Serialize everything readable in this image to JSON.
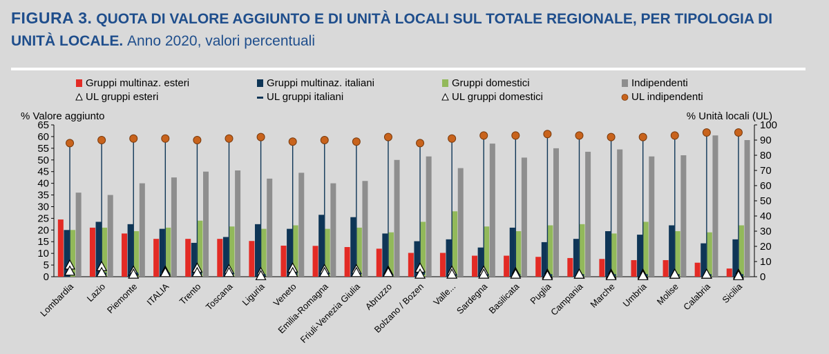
{
  "header": {
    "figure_label": "FIGURA 3.",
    "title_main": "QUOTA DI VALORE AGGIUNTO E DI UNITÀ LOCALI SUL TOTALE REGIONALE, PER TIPOLOGIA DI UNITÀ LOCALE.",
    "title_sub": "Anno 2020, valori percentuali"
  },
  "chart_data": {
    "type": "bar",
    "title": "QUOTA DI VALORE AGGIUNTO E DI UNITÀ LOCALI SUL TOTALE REGIONALE, PER TIPOLOGIA DI UNITÀ LOCALE.",
    "ylabel": "% Valore aggiunto",
    "y2label": "% Unità locali (UL)",
    "ylim": [
      0,
      65
    ],
    "y2lim": [
      0,
      100
    ],
    "yticks": [
      0,
      5,
      10,
      15,
      20,
      25,
      30,
      35,
      40,
      45,
      50,
      55,
      60,
      65
    ],
    "y2ticks": [
      0,
      10,
      20,
      30,
      40,
      50,
      60,
      70,
      80,
      90,
      100
    ],
    "legend_position": "top",
    "categories": [
      "Lombardia",
      "Lazio",
      "Piemonte",
      "ITALIA",
      "Trento",
      "Toscana",
      "Liguria",
      "Veneto",
      "Emilia-Romagna",
      "Friuli-Venezia Giulia",
      "Abruzzo",
      "Bolzano / Bozen",
      "Valle...",
      "Sardegna",
      "Basilicata",
      "Puglia",
      "Campania",
      "Marche",
      "Umbria",
      "Molise",
      "Calabria",
      "Sicilia"
    ],
    "series": [
      {
        "name": "Gruppi multinaz. esteri",
        "kind": "bar",
        "axis": "left",
        "color": "#e32b25",
        "values": [
          24.5,
          21,
          18.5,
          16.2,
          16.2,
          16.2,
          15.3,
          13.3,
          13.2,
          12.7,
          12,
          10.2,
          10.2,
          9,
          9,
          8.5,
          8,
          7.6,
          7.1,
          7.1,
          6,
          3.5
        ]
      },
      {
        "name": "Gruppi multinaz. italiani",
        "kind": "bar",
        "axis": "left",
        "color": "#0e3556",
        "values": [
          20,
          23.5,
          22.5,
          20.5,
          14.5,
          17,
          22.5,
          20.5,
          26.5,
          25.5,
          18.5,
          15.2,
          16,
          12.5,
          21,
          14.8,
          16.2,
          19.5,
          18,
          22,
          14.3,
          16
        ]
      },
      {
        "name": "Gruppi domestici",
        "kind": "bar",
        "axis": "left",
        "color": "#92b95a",
        "values": [
          20,
          21,
          19.5,
          21,
          24,
          21.5,
          20.5,
          22,
          20.5,
          21,
          19,
          23.5,
          28,
          21.5,
          19.5,
          22,
          22.5,
          18.5,
          23.5,
          19.5,
          19,
          22
        ]
      },
      {
        "name": "Indipendenti",
        "kind": "bar",
        "axis": "left",
        "color": "#8e8e8e",
        "values": [
          36,
          35,
          40,
          42.5,
          45,
          45.5,
          42,
          44.5,
          40,
          41,
          50,
          51.5,
          46.5,
          57,
          51,
          55,
          53.5,
          54.5,
          51.5,
          52,
          60.5,
          58.5
        ]
      },
      {
        "name": "UL gruppi esteri",
        "kind": "marker",
        "marker": "triangle",
        "axis": "right",
        "color": "#ffffff",
        "values": [
          8,
          7,
          4,
          4,
          6,
          5,
          3,
          6,
          5,
          5,
          4,
          6,
          4,
          4,
          3,
          2,
          2,
          2,
          2,
          2,
          2,
          2
        ]
      },
      {
        "name": "UL gruppi italiani",
        "kind": "marker",
        "marker": "dash",
        "axis": "right",
        "color": "#0e3556",
        "values": [
          2,
          2,
          2,
          2,
          2,
          2,
          1,
          2,
          2,
          2,
          1,
          2,
          1,
          1,
          1,
          1,
          1,
          1,
          1,
          1,
          1,
          1
        ]
      },
      {
        "name": "UL gruppi domestici",
        "kind": "marker",
        "marker": "triangle",
        "axis": "right",
        "color": "#ffffff",
        "values": [
          4,
          3,
          2,
          3,
          3,
          3,
          1,
          3,
          3,
          3,
          3,
          2,
          2,
          2,
          2,
          1,
          2,
          1,
          1,
          2,
          2,
          1
        ]
      },
      {
        "name": "UL indipendenti",
        "kind": "marker",
        "marker": "circle",
        "axis": "right",
        "color": "#c8631c",
        "values": [
          88,
          90,
          91,
          91,
          90,
          91,
          92,
          89,
          90,
          89,
          92,
          88,
          91,
          93,
          93,
          94,
          93,
          92,
          92,
          93,
          95,
          95
        ]
      }
    ],
    "colors": {
      "background": "#d9d9d9",
      "title": "#1f4e8c",
      "stem": "#0e3556"
    }
  }
}
